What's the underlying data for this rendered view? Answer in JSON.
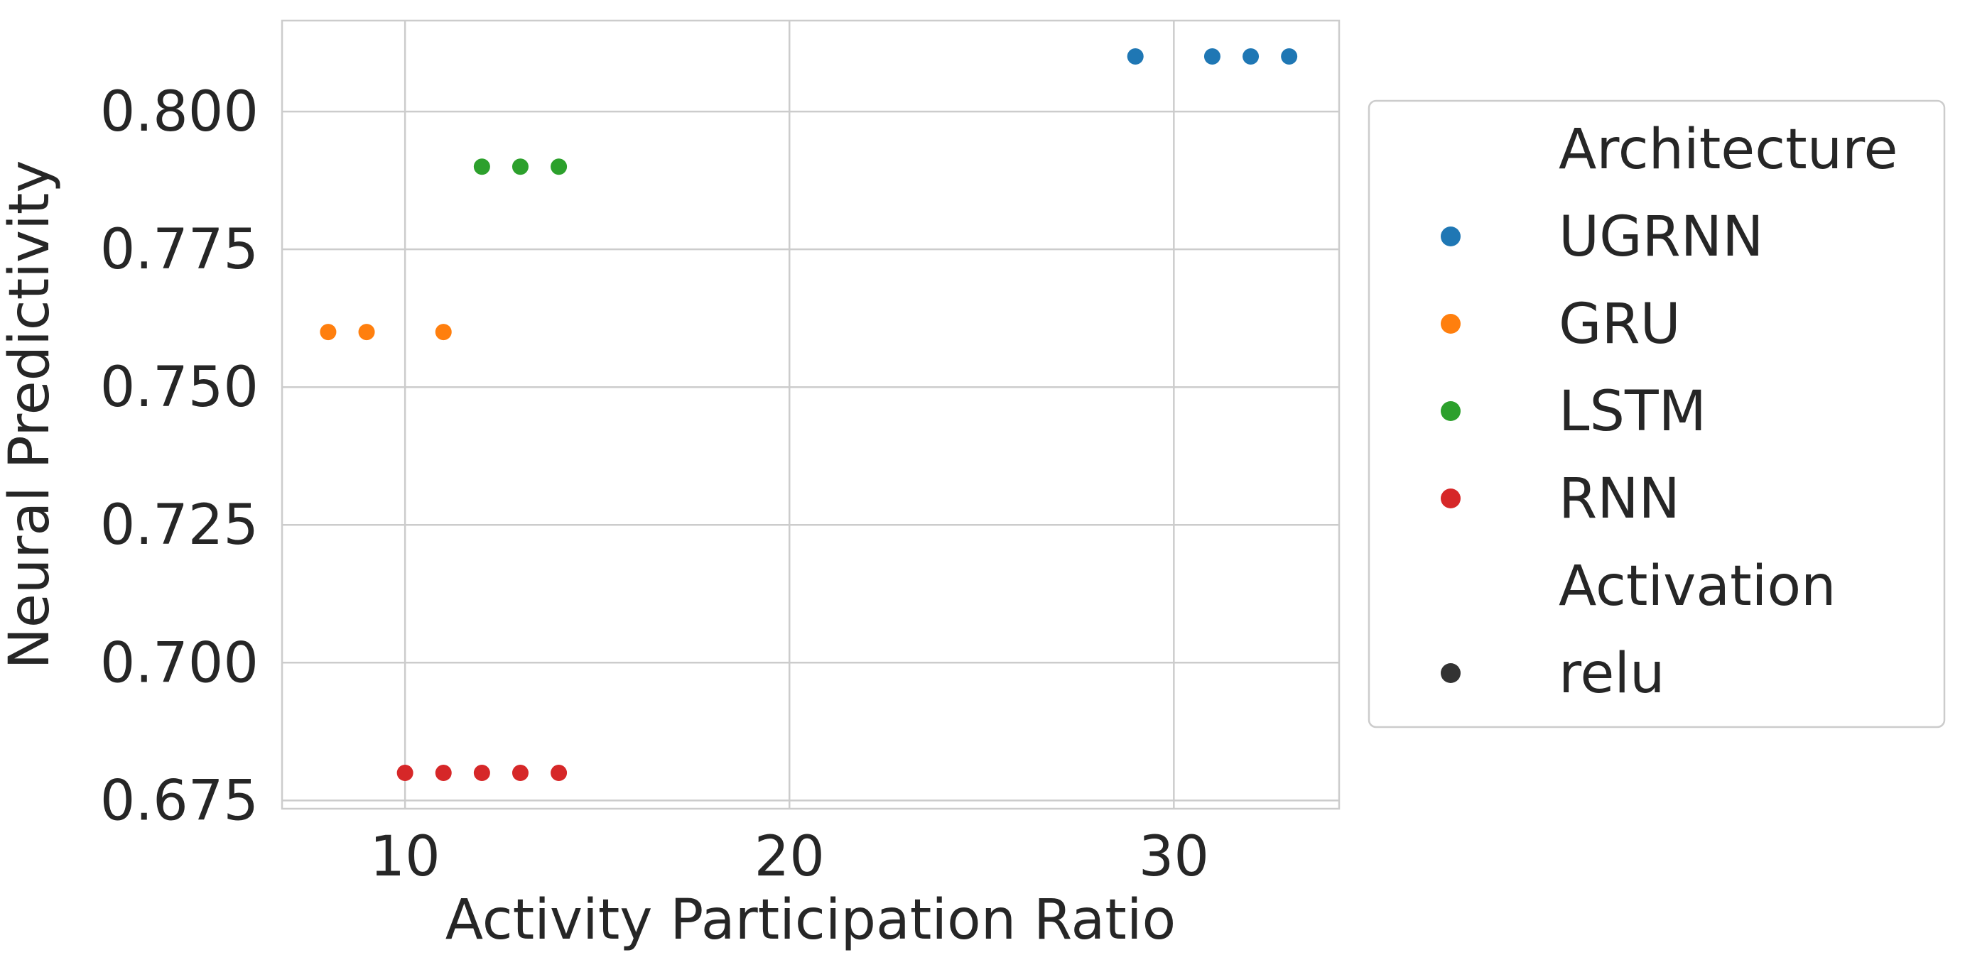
{
  "chart_data": {
    "type": "scatter",
    "title": "",
    "xlabel": "Activity Participation Ratio",
    "ylabel": "Neural Predictivity",
    "xlim": [
      6.8,
      34.3
    ],
    "ylim": [
      0.6735,
      0.8165
    ],
    "x_ticks": [
      10,
      20,
      30
    ],
    "x_tick_labels": [
      "10",
      "20",
      "30"
    ],
    "y_ticks": [
      0.675,
      0.7,
      0.725,
      0.75,
      0.775,
      0.8
    ],
    "y_tick_labels": [
      "0.675",
      "0.700",
      "0.725",
      "0.750",
      "0.775",
      "0.800"
    ],
    "grid": true,
    "legend_placement": "outside-right",
    "series": [
      {
        "name": "UGRNN",
        "color": "#1f77b4",
        "points": [
          [
            29,
            0.81
          ],
          [
            31,
            0.81
          ],
          [
            32,
            0.81
          ],
          [
            33,
            0.81
          ]
        ]
      },
      {
        "name": "GRU",
        "color": "#ff7f0e",
        "points": [
          [
            8,
            0.76
          ],
          [
            9,
            0.76
          ],
          [
            11,
            0.76
          ]
        ]
      },
      {
        "name": "LSTM",
        "color": "#2ca02c",
        "points": [
          [
            12,
            0.79
          ],
          [
            13,
            0.79
          ],
          [
            14,
            0.79
          ]
        ]
      },
      {
        "name": "RNN",
        "color": "#d62728",
        "points": [
          [
            10,
            0.68
          ],
          [
            11,
            0.68
          ],
          [
            12,
            0.68
          ],
          [
            13,
            0.68
          ],
          [
            14,
            0.68
          ]
        ]
      }
    ],
    "legend": {
      "groups": [
        {
          "title": "Architecture",
          "entries": [
            {
              "label": "UGRNN",
              "color": "#1f77b4"
            },
            {
              "label": "GRU",
              "color": "#ff7f0e"
            },
            {
              "label": "LSTM",
              "color": "#2ca02c"
            },
            {
              "label": "RNN",
              "color": "#d62728"
            }
          ]
        },
        {
          "title": "Activation",
          "entries": [
            {
              "label": "relu",
              "color": "#333333"
            }
          ]
        }
      ]
    },
    "colors": {
      "grid": "#cccccc",
      "axis_frame": "#cccccc",
      "text": "#262626",
      "legend_border": "#cccccc"
    }
  }
}
